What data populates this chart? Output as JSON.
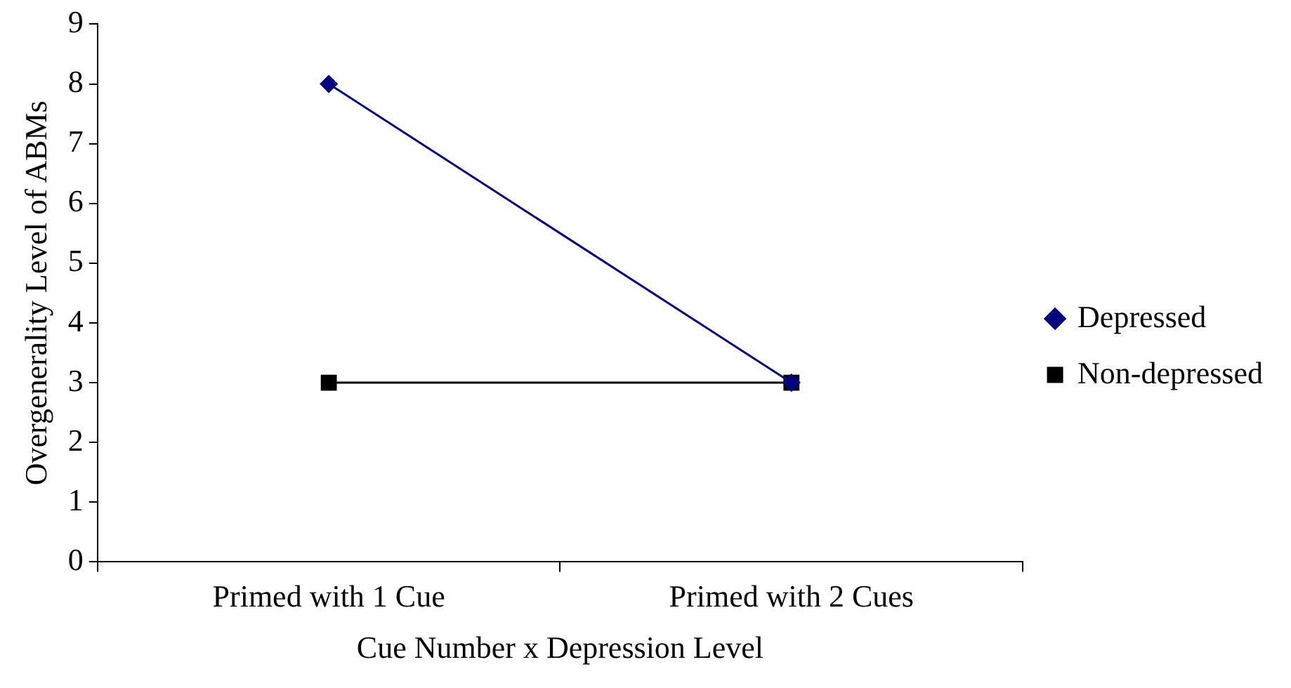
{
  "chart_data": {
    "type": "line",
    "xlabel": "Cue Number x Depression Level",
    "ylabel": "Overgenerality Level of ABMs",
    "categories": [
      "Primed with 1 Cue",
      "Primed with 2 Cues"
    ],
    "series": [
      {
        "name": "Depressed",
        "color": "#000080",
        "values": [
          8,
          3
        ],
        "marker": "diamond"
      },
      {
        "name": "Non-depressed",
        "color": "#000000",
        "values": [
          3,
          3
        ],
        "marker": "square"
      }
    ],
    "ylim": [
      0,
      9
    ],
    "yticks": [
      0,
      1,
      2,
      3,
      4,
      5,
      6,
      7,
      8,
      9
    ],
    "grid": false,
    "legend": "right",
    "line_style": "solid"
  }
}
